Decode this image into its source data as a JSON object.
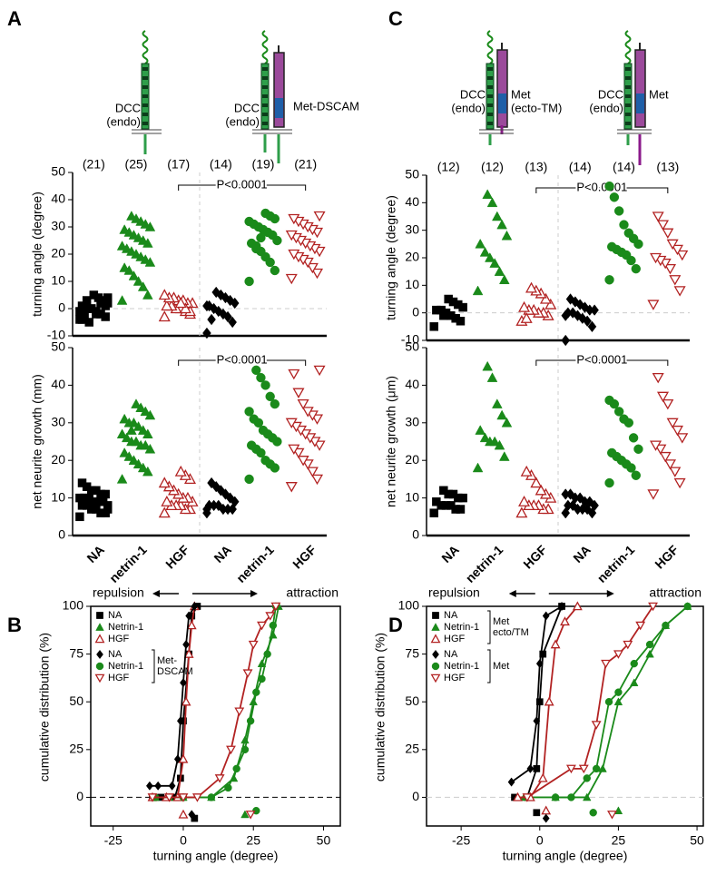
{
  "panels": [
    "A",
    "C",
    "B",
    "D"
  ],
  "diagrams": {
    "A": [
      [
        "DCC",
        "(endo)"
      ],
      [
        "DCC",
        "(endo)"
      ],
      [
        "Met-DSCAM"
      ]
    ],
    "C": [
      [
        "DCC",
        "(endo)"
      ],
      [
        "Met",
        "(ecto-TM)"
      ],
      [
        "DCC",
        "(endo)"
      ],
      [
        "Met"
      ]
    ]
  },
  "chart_data": [
    {
      "type": "strip",
      "ylabel": "turning angle (degree)",
      "ylim": [
        -10,
        50
      ],
      "yticks": [
        -10,
        0,
        10,
        20,
        30,
        40,
        50
      ],
      "n_labels": [
        "(21)",
        "(25)",
        "(17)",
        "(14)",
        "(19)",
        "(21)"
      ],
      "annotation": "P<0.0001",
      "groups": [
        {
          "color": "#000000",
          "marker": "square",
          "values": [
            -4,
            -3,
            -2,
            -1,
            0,
            0,
            1,
            2,
            3,
            4,
            5,
            -5,
            -3,
            -1,
            1,
            2,
            -2,
            0,
            3,
            -4,
            4
          ]
        },
        {
          "color": "#1a8a1a",
          "marker": "triangle",
          "values": [
            3,
            5,
            8,
            10,
            12,
            14,
            15,
            17,
            18,
            19,
            20,
            21,
            22,
            23,
            24,
            25,
            26,
            27,
            28,
            29,
            30,
            31,
            32,
            33,
            34
          ]
        },
        {
          "color": "#b22222",
          "marker": "triangle-open",
          "values": [
            -3,
            -2,
            -1,
            0,
            0,
            1,
            1,
            2,
            2,
            3,
            3,
            4,
            4,
            5,
            -1,
            0,
            2
          ]
        },
        {
          "color": "#000000",
          "marker": "diamond",
          "values": [
            -9,
            -5,
            -3,
            -2,
            -1,
            0,
            1,
            2,
            3,
            4,
            5,
            6,
            -4,
            1
          ]
        },
        {
          "color": "#1a8a1a",
          "marker": "circle",
          "values": [
            10,
            14,
            17,
            19,
            21,
            23,
            24,
            25,
            27,
            28,
            29,
            30,
            31,
            32,
            33,
            34,
            35,
            26,
            22
          ]
        },
        {
          "color": "#b22222",
          "marker": "triangle-down-open",
          "values": [
            11,
            13,
            15,
            17,
            18,
            19,
            20,
            21,
            22,
            23,
            24,
            25,
            26,
            27,
            28,
            29,
            30,
            31,
            32,
            33,
            34
          ]
        }
      ]
    },
    {
      "type": "strip",
      "ylabel": "net neurite growth (mm)",
      "ylim": [
        0,
        50
      ],
      "yticks": [
        0,
        10,
        20,
        30,
        40,
        50
      ],
      "categories": [
        "NA",
        "netrin-1",
        "HGF",
        "NA",
        "netrin-1",
        "HGF"
      ],
      "annotation": "P<0.0001",
      "groups": [
        {
          "color": "#000000",
          "marker": "square",
          "values": [
            5,
            6,
            6,
            7,
            7,
            8,
            8,
            8,
            9,
            9,
            9,
            10,
            10,
            10,
            11,
            11,
            12,
            12,
            13,
            14,
            7
          ]
        },
        {
          "color": "#1a8a1a",
          "marker": "triangle",
          "values": [
            15,
            17,
            18,
            19,
            20,
            21,
            22,
            23,
            24,
            24,
            25,
            25,
            26,
            27,
            27,
            28,
            29,
            30,
            30,
            31,
            32,
            33,
            34,
            35,
            28
          ]
        },
        {
          "color": "#b22222",
          "marker": "triangle-open",
          "values": [
            6,
            7,
            7,
            8,
            8,
            8,
            9,
            9,
            10,
            10,
            11,
            12,
            13,
            14,
            15,
            16,
            17
          ]
        },
        {
          "color": "#000000",
          "marker": "diamond",
          "values": [
            6,
            7,
            7,
            7,
            8,
            8,
            8,
            9,
            10,
            11,
            12,
            13,
            14,
            7
          ]
        },
        {
          "color": "#1a8a1a",
          "marker": "circle",
          "values": [
            15,
            18,
            19,
            20,
            22,
            23,
            24,
            25,
            26,
            27,
            28,
            30,
            31,
            33,
            35,
            37,
            40,
            42,
            44
          ]
        },
        {
          "color": "#b22222",
          "marker": "triangle-down-open",
          "values": [
            13,
            15,
            17,
            19,
            20,
            22,
            23,
            24,
            25,
            26,
            27,
            28,
            29,
            30,
            31,
            32,
            33,
            35,
            38,
            43,
            44
          ]
        }
      ]
    },
    {
      "type": "strip",
      "ylabel": "turning angle (degree)",
      "ylim": [
        -10,
        50
      ],
      "yticks": [
        -10,
        0,
        10,
        20,
        30,
        40,
        50
      ],
      "n_labels": [
        "(12)",
        "(12)",
        "(13)",
        "(14)",
        "(14)",
        "(13)"
      ],
      "annotation": "P<0.0001",
      "groups": [
        {
          "color": "#000000",
          "marker": "square",
          "values": [
            -5,
            -3,
            -2,
            -1,
            0,
            1,
            1,
            2,
            3,
            4,
            5,
            -1
          ]
        },
        {
          "color": "#1a8a1a",
          "marker": "triangle",
          "values": [
            8,
            12,
            15,
            18,
            20,
            22,
            25,
            28,
            32,
            35,
            40,
            43
          ]
        },
        {
          "color": "#b22222",
          "marker": "triangle-open",
          "values": [
            -3,
            -1,
            0,
            0,
            1,
            1,
            2,
            3,
            5,
            7,
            8,
            9,
            -2
          ]
        },
        {
          "color": "#000000",
          "marker": "diamond",
          "values": [
            -10,
            -5,
            -3,
            -2,
            -1,
            0,
            0,
            1,
            1,
            2,
            3,
            4,
            5,
            -1
          ]
        },
        {
          "color": "#1a8a1a",
          "marker": "circle",
          "values": [
            12,
            16,
            19,
            21,
            22,
            23,
            24,
            25,
            27,
            29,
            32,
            37,
            42,
            46
          ]
        },
        {
          "color": "#b22222",
          "marker": "triangle-down-open",
          "values": [
            3,
            8,
            12,
            16,
            18,
            19,
            20,
            21,
            23,
            25,
            29,
            32,
            35
          ]
        }
      ]
    },
    {
      "type": "strip",
      "ylabel": "net neurite growth (μm)",
      "ylim": [
        0,
        50
      ],
      "yticks": [
        0,
        10,
        20,
        30,
        40,
        50
      ],
      "categories": [
        "NA",
        "netrin-1",
        "HGF",
        "NA",
        "netrin-1",
        "HGF"
      ],
      "annotation": "P<0.0001",
      "groups": [
        {
          "color": "#000000",
          "marker": "square",
          "values": [
            6,
            7,
            7,
            8,
            8,
            8,
            9,
            10,
            10,
            11,
            11,
            12
          ]
        },
        {
          "color": "#1a8a1a",
          "marker": "triangle",
          "values": [
            18,
            21,
            24,
            25,
            25,
            26,
            28,
            30,
            32,
            35,
            42,
            45
          ]
        },
        {
          "color": "#b22222",
          "marker": "triangle-open",
          "values": [
            6,
            7,
            7,
            8,
            8,
            8,
            9,
            10,
            11,
            12,
            14,
            16,
            17
          ]
        },
        {
          "color": "#000000",
          "marker": "diamond",
          "values": [
            6,
            6,
            7,
            7,
            7,
            8,
            8,
            8,
            9,
            9,
            10,
            10,
            11,
            11
          ]
        },
        {
          "color": "#1a8a1a",
          "marker": "circle",
          "values": [
            14,
            16,
            18,
            19,
            20,
            21,
            22,
            23,
            26,
            30,
            31,
            33,
            35,
            36
          ]
        },
        {
          "color": "#b22222",
          "marker": "triangle-down-open",
          "values": [
            11,
            14,
            17,
            19,
            21,
            23,
            24,
            26,
            28,
            30,
            35,
            37,
            42
          ]
        }
      ]
    },
    {
      "type": "cumulative",
      "xlabel": "turning angle (degree)",
      "ylabel": "cumulative distribution (%)",
      "xlim": [
        -33,
        56
      ],
      "xticks": [
        -25,
        0,
        25,
        50
      ],
      "ylim": [
        -15,
        100
      ],
      "yticks": [
        0,
        25,
        50,
        75,
        100
      ],
      "direction_labels": [
        "repulsion",
        "attraction"
      ],
      "legend_groups": [
        [
          "Met-",
          "DSCAM"
        ]
      ],
      "series": [
        {
          "name": "NA",
          "color": "#000000",
          "marker": "square",
          "x": [
            -11,
            -8,
            -3,
            -1,
            0,
            2,
            3,
            5
          ],
          "values": [
            0,
            0,
            0,
            10,
            40,
            75,
            95,
            100
          ],
          "summary": [
            4,
            -11
          ]
        },
        {
          "name": "Netrin-1",
          "color": "#1a8a1a",
          "marker": "triangle",
          "x": [
            -10,
            -5,
            0,
            10,
            18,
            22,
            25,
            28,
            32,
            34
          ],
          "values": [
            0,
            0,
            0,
            0,
            10,
            30,
            50,
            70,
            85,
            100
          ],
          "summary": [
            22,
            -9
          ]
        },
        {
          "name": "HGF",
          "color": "#b22222",
          "marker": "triangle-open",
          "x": [
            -11,
            -6,
            -2,
            0,
            1,
            2,
            3,
            4
          ],
          "values": [
            0,
            0,
            0,
            20,
            50,
            75,
            90,
            100
          ],
          "summary": [
            0,
            -9
          ]
        },
        {
          "name": "NA",
          "color": "#000000",
          "marker": "diamond",
          "x": [
            -12,
            -9,
            -4,
            -2,
            -1,
            0,
            1,
            2,
            4
          ],
          "values": [
            6,
            6,
            6,
            20,
            40,
            60,
            80,
            95,
            100
          ],
          "summary": [
            3,
            -9
          ]
        },
        {
          "name": "Netrin-1",
          "color": "#1a8a1a",
          "marker": "circle",
          "x": [
            -10,
            0,
            10,
            16,
            19,
            22,
            24,
            26,
            28,
            30,
            32,
            33
          ],
          "values": [
            0,
            0,
            0,
            5,
            15,
            25,
            40,
            55,
            62,
            75,
            90,
            100
          ],
          "summary": [
            26,
            -7
          ]
        },
        {
          "name": "HGF",
          "color": "#b22222",
          "marker": "triangle-down-open",
          "x": [
            -11,
            -5,
            0,
            5,
            13,
            17,
            20,
            23,
            25,
            28,
            31,
            33
          ],
          "values": [
            0,
            0,
            0,
            0,
            10,
            25,
            45,
            65,
            80,
            90,
            95,
            100
          ],
          "summary": [
            24,
            -9
          ]
        }
      ]
    },
    {
      "type": "cumulative",
      "xlabel": "turning angle (degree)",
      "ylabel": "cumulative distribution (%)",
      "xlim": [
        -36,
        52
      ],
      "xticks": [
        -25,
        0,
        25,
        50
      ],
      "ylim": [
        -15,
        100
      ],
      "yticks": [
        0,
        25,
        50,
        75,
        100
      ],
      "direction_labels": [
        "repulsion",
        "attraction"
      ],
      "legend_groups": [
        [
          "Met",
          "ecto/TM"
        ],
        [
          "Met"
        ]
      ],
      "series": [
        {
          "name": "NA",
          "color": "#000000",
          "marker": "square",
          "x": [
            -8,
            -4,
            -1,
            0,
            1,
            7
          ],
          "values": [
            0,
            0,
            15,
            50,
            75,
            100
          ],
          "summary": [
            -1,
            -8
          ]
        },
        {
          "name": "Netrin-1",
          "color": "#1a8a1a",
          "marker": "triangle",
          "x": [
            -5,
            5,
            15,
            20,
            25,
            30,
            35,
            40,
            47
          ],
          "values": [
            0,
            0,
            0,
            15,
            50,
            60,
            75,
            90,
            100
          ],
          "summary": [
            25,
            -7
          ]
        },
        {
          "name": "HGF",
          "color": "#b22222",
          "marker": "triangle-open",
          "x": [
            -7,
            -3,
            1,
            3,
            5,
            8,
            12
          ],
          "values": [
            0,
            0,
            10,
            50,
            80,
            92,
            100
          ],
          "summary": [
            2,
            -7
          ]
        },
        {
          "name": "NA",
          "color": "#000000",
          "marker": "diamond",
          "x": [
            -9,
            -3,
            -1,
            0,
            2,
            7
          ],
          "values": [
            8,
            15,
            40,
            70,
            95,
            100
          ],
          "summary": [
            2,
            -11
          ]
        },
        {
          "name": "Netrin-1",
          "color": "#1a8a1a",
          "marker": "circle",
          "x": [
            5,
            10,
            15,
            18,
            22,
            25,
            30,
            35,
            40,
            47
          ],
          "values": [
            0,
            0,
            10,
            15,
            50,
            55,
            70,
            80,
            90,
            100
          ],
          "summary": [
            17,
            -8
          ]
        },
        {
          "name": "HGF",
          "color": "#b22222",
          "marker": "triangle-down-open",
          "x": [
            -4,
            10,
            14,
            18,
            21,
            25,
            28,
            32,
            36
          ],
          "values": [
            0,
            15,
            15,
            38,
            70,
            75,
            80,
            90,
            100
          ],
          "summary": [
            23,
            -9
          ]
        }
      ]
    }
  ]
}
